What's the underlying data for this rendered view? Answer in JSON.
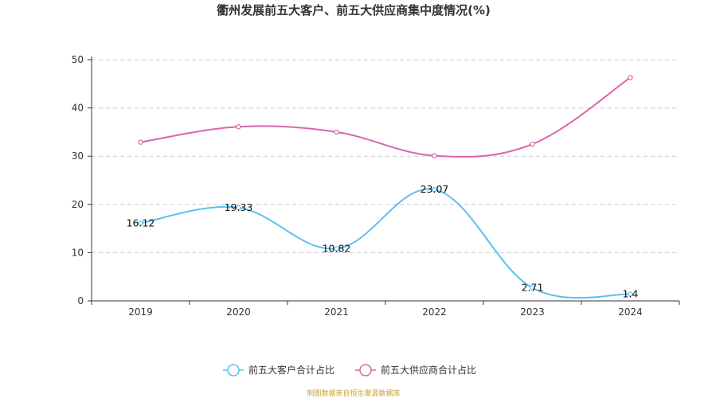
{
  "chart_data": {
    "type": "line",
    "title": "衢州发展前五大客户、前五大供应商集中度情况(%)",
    "categories": [
      "2019",
      "2020",
      "2021",
      "2022",
      "2023",
      "2024"
    ],
    "y_ticks": [
      0,
      10,
      20,
      30,
      40,
      50
    ],
    "ylim": [
      0,
      50
    ],
    "grid": "horizontal-dashed",
    "legend_position": "bottom-center",
    "series": [
      {
        "name": "前五大客户合计占比",
        "color": "#5bc0f0",
        "values": [
          16.12,
          19.33,
          10.82,
          23.07,
          2.71,
          1.4
        ],
        "labels": [
          "16.12",
          "19.33",
          "10.82",
          "23.07",
          "2.71",
          "1.4"
        ],
        "show_labels": true
      },
      {
        "name": "前五大供应商合计占比",
        "color": "#d966a8",
        "values": [
          32.9,
          36.1,
          35.0,
          30.1,
          32.5,
          46.3
        ],
        "labels": [],
        "show_labels": false
      }
    ],
    "source": "制图数据来自恒生聚源数据库"
  }
}
